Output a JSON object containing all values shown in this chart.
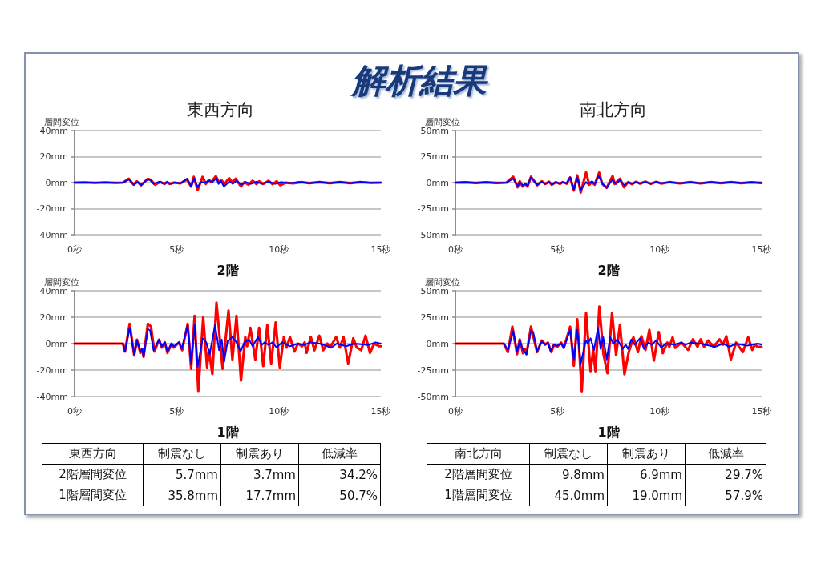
{
  "chart_data": [
    {
      "type": "other",
      "title": "解析結果"
    },
    {
      "type": "line",
      "title": "東西方向",
      "xlabel": "2階",
      "ylabel": "層間変位",
      "xlim": [
        0,
        15
      ],
      "xticks": [
        {
          "value": 0,
          "label": "0秒"
        },
        {
          "value": 5,
          "label": "5秒"
        },
        {
          "value": 10,
          "label": "10秒"
        },
        {
          "value": 15,
          "label": "15秒"
        }
      ],
      "ylim": [
        -40,
        40
      ],
      "yticks": [
        {
          "value": -40,
          "label": "-40mm"
        },
        {
          "value": -20,
          "label": "-20mm"
        },
        {
          "value": 0,
          "label": "0mm"
        },
        {
          "value": 20,
          "label": "20mm"
        },
        {
          "value": 40,
          "label": "40mm"
        }
      ],
      "grid": "y",
      "series": [
        {
          "color": "#ff0000",
          "x": [
            0,
            0.5,
            1,
            1.5,
            2,
            2.37,
            2.66,
            2.89,
            3.05,
            3.26,
            3.59,
            3.74,
            3.94,
            4.2,
            4.4,
            4.53,
            4.66,
            4.86,
            5.18,
            5.51,
            5.71,
            5.84,
            6.03,
            6.27,
            6.43,
            6.58,
            6.69,
            6.92,
            7.08,
            7.21,
            7.34,
            7.57,
            7.74,
            7.89,
            8.15,
            8.32,
            8.52,
            8.72,
            8.91,
            9.04,
            9.24,
            9.5,
            9.7,
            9.9,
            10.07,
            10.35,
            10.7,
            11.1,
            11.5,
            12,
            12.5,
            13,
            13.5,
            14,
            14.5,
            15
          ],
          "values": [
            0,
            0.2,
            -0.2,
            0.2,
            -0.2,
            0,
            3,
            -1.6,
            1,
            -2,
            3,
            2,
            -1.6,
            0.6,
            -1,
            0.4,
            -1,
            0,
            -0.6,
            2.4,
            -3,
            4.4,
            -5.7,
            4.4,
            -1,
            2,
            0.4,
            5,
            0,
            1.6,
            -1,
            3.4,
            0,
            3,
            -3,
            0.4,
            -1.6,
            1.4,
            -1.2,
            1,
            -1,
            1.4,
            -1.2,
            1,
            -2,
            0,
            -0.6,
            0.4,
            -0.4,
            0.4,
            -0.4,
            0.4,
            -0.4,
            0.4,
            -0.2,
            0
          ]
        },
        {
          "color": "#0000ff",
          "x": [
            0,
            0.5,
            1,
            1.5,
            2,
            2.37,
            2.66,
            2.91,
            3.09,
            3.26,
            3.55,
            3.7,
            3.87,
            4.14,
            4.4,
            4.53,
            4.73,
            4.92,
            5.18,
            5.51,
            5.71,
            5.86,
            6.03,
            6.19,
            6.4,
            6.58,
            6.75,
            6.95,
            7.05,
            7.15,
            7.32,
            7.6,
            7.74,
            7.93,
            8.15,
            8.39,
            8.63,
            8.91,
            9.18,
            9.5,
            9.83,
            10.09,
            10.5,
            11,
            11.5,
            12,
            12.5,
            13,
            13.5,
            14,
            14.5,
            15
          ],
          "values": [
            0,
            0.2,
            -0.2,
            0.2,
            -0.2,
            0,
            2.4,
            -1.6,
            0.4,
            -2,
            2.4,
            2,
            -1,
            0.6,
            -1,
            0.4,
            -1,
            0.2,
            -0.6,
            3,
            -3,
            3.4,
            -3.7,
            0.4,
            0,
            1.6,
            0.4,
            3.4,
            -1,
            1.6,
            -3,
            1,
            -1,
            1.4,
            -1.6,
            0.4,
            -1,
            0.6,
            -1,
            0.6,
            -1,
            0.4,
            -0.4,
            0.4,
            -0.4,
            0.4,
            -0.4,
            0.4,
            -0.4,
            0.4,
            -0.2,
            0
          ]
        }
      ]
    },
    {
      "type": "line",
      "title": "南北方向",
      "xlabel": "2階",
      "ylabel": "層間変位",
      "xlim": [
        0,
        15
      ],
      "xticks": [
        {
          "value": 0,
          "label": "0秒"
        },
        {
          "value": 5,
          "label": "5秒"
        },
        {
          "value": 10,
          "label": "10秒"
        },
        {
          "value": 15,
          "label": "15秒"
        }
      ],
      "ylim": [
        -50,
        50
      ],
      "yticks": [
        {
          "value": -50,
          "label": "-50mm"
        },
        {
          "value": -25,
          "label": "-25mm"
        },
        {
          "value": 0,
          "label": "0mm"
        },
        {
          "value": 25,
          "label": "25mm"
        },
        {
          "value": 50,
          "label": "50mm"
        }
      ],
      "grid": "y",
      "series": [
        {
          "color": "#ff0000",
          "x": [
            0,
            0.5,
            1,
            1.5,
            2,
            2.5,
            2.83,
            3.05,
            3.15,
            3.29,
            3.42,
            3.53,
            3.7,
            4.01,
            4.23,
            4.4,
            4.59,
            4.72,
            4.92,
            5.12,
            5.25,
            5.45,
            5.62,
            5.8,
            5.97,
            6.14,
            6.4,
            6.56,
            6.69,
            6.82,
            7.04,
            7.19,
            7.41,
            7.7,
            7.8,
            8.06,
            8.26,
            8.46,
            8.65,
            8.85,
            9.04,
            9.3,
            9.57,
            9.83,
            10.09,
            10.5,
            11,
            11.5,
            12,
            12.5,
            13,
            13.5,
            14,
            14.5,
            15
          ],
          "values": [
            0,
            0.3,
            -0.3,
            0.3,
            -0.3,
            0,
            5.6,
            -4.5,
            1.3,
            -3.8,
            -1,
            -3.8,
            5.6,
            -2.5,
            1.3,
            -1.3,
            0.8,
            -2,
            0.5,
            -1.3,
            0.5,
            -1,
            5,
            -7.6,
            7,
            -9.6,
            9.8,
            -2,
            0.5,
            -2,
            9.6,
            -1.3,
            -5,
            6.3,
            -1.3,
            3.8,
            -4.5,
            0.5,
            -1.5,
            0.8,
            -1,
            1,
            -1.3,
            0.8,
            -1,
            0.5,
            -0.8,
            0.5,
            -0.8,
            0.5,
            -0.5,
            0.5,
            -0.5,
            0.3,
            -0.3
          ]
        },
        {
          "color": "#0000ff",
          "x": [
            0,
            0.5,
            1,
            1.5,
            2,
            2.5,
            2.83,
            3.05,
            3.15,
            3.31,
            3.42,
            3.53,
            3.7,
            4.01,
            4.23,
            4.4,
            4.59,
            4.72,
            4.92,
            5.12,
            5.25,
            5.45,
            5.62,
            5.8,
            5.97,
            6.14,
            6.4,
            6.49,
            6.69,
            6.82,
            7.02,
            7.22,
            7.41,
            7.67,
            7.87,
            8.06,
            8.26,
            8.46,
            8.65,
            8.85,
            9.04,
            9.3,
            9.57,
            9.83,
            10.09,
            10.5,
            11,
            11.5,
            12,
            12.5,
            13,
            13.5,
            14,
            14.5,
            15
          ],
          "values": [
            0,
            0.3,
            -0.3,
            0.3,
            -0.3,
            0,
            3.8,
            -3.3,
            0.5,
            -3,
            -1,
            -3.3,
            5,
            -2,
            0.8,
            -1.3,
            0.5,
            -1.8,
            0.3,
            -1,
            0.3,
            -0.8,
            5,
            -6.5,
            5,
            -6.9,
            0.5,
            -1.3,
            1.3,
            -1.3,
            6.3,
            -1.3,
            -5,
            2.5,
            -1.3,
            2.5,
            -2.5,
            0.3,
            -1,
            0.5,
            -0.8,
            0.5,
            -1,
            0.5,
            -0.5,
            0.3,
            -0.5,
            0.3,
            -0.5,
            0.3,
            -0.3,
            0.3,
            -0.3,
            0.3,
            -0.3
          ]
        }
      ]
    },
    {
      "type": "line",
      "xlabel": "1階",
      "ylabel": "層間変位",
      "xlim": [
        0,
        15
      ],
      "xticks": [
        {
          "value": 0,
          "label": "0秒"
        },
        {
          "value": 5,
          "label": "5秒"
        },
        {
          "value": 10,
          "label": "10秒"
        },
        {
          "value": 15,
          "label": "15秒"
        }
      ],
      "ylim": [
        -40,
        40
      ],
      "yticks": [
        {
          "value": -40,
          "label": "-40mm"
        },
        {
          "value": -20,
          "label": "-20mm"
        },
        {
          "value": 0,
          "label": "0mm"
        },
        {
          "value": 20,
          "label": "20mm"
        },
        {
          "value": 40,
          "label": "40mm"
        }
      ],
      "grid": "y",
      "series": [
        {
          "color": "#ff0000",
          "x": [
            0,
            1,
            2,
            2.37,
            2.47,
            2.7,
            2.92,
            3.06,
            3.22,
            3.31,
            3.38,
            3.59,
            3.74,
            3.91,
            4.14,
            4.27,
            4.42,
            4.55,
            4.75,
            4.86,
            5.12,
            5.27,
            5.54,
            5.71,
            5.88,
            6.06,
            6.3,
            6.49,
            6.58,
            6.75,
            6.95,
            7.25,
            7.54,
            7.73,
            7.93,
            8.15,
            8.36,
            8.45,
            8.61,
            8.85,
            9.04,
            9.24,
            9.44,
            9.63,
            9.85,
            10.05,
            10.25,
            10.38,
            10.55,
            10.77,
            10.94,
            11.14,
            11.27,
            11.36,
            11.57,
            11.75,
            11.99,
            12.18,
            12.38,
            12.51,
            12.81,
            12.99,
            13.17,
            13.4,
            13.65,
            13.82,
            14.04,
            14.25,
            14.47,
            14.67,
            14.93,
            15
          ],
          "values": [
            0,
            0,
            0,
            0,
            -6,
            15,
            -9,
            3,
            -7,
            -4,
            -10,
            15,
            13,
            -6,
            3,
            -3,
            1,
            -7,
            0,
            -3,
            1,
            -5,
            15,
            -19,
            21,
            -35.8,
            20,
            -18,
            -5,
            -23,
            31,
            -19,
            25,
            -12,
            21,
            -28,
            5,
            -2,
            12,
            -12,
            12,
            -17,
            14,
            -15,
            16,
            -18,
            5,
            -3,
            5,
            -6,
            0,
            -2,
            1,
            -7,
            5,
            -5,
            6,
            -5,
            0,
            -3,
            5,
            -3,
            5,
            -15,
            4,
            -3,
            -5,
            6,
            -7,
            0,
            -2,
            -2
          ]
        },
        {
          "color": "#0000ff",
          "x": [
            0,
            1,
            2,
            2.37,
            2.47,
            2.7,
            2.92,
            3.06,
            3.22,
            3.31,
            3.38,
            3.59,
            3.7,
            3.87,
            4.14,
            4.27,
            4.42,
            4.55,
            4.75,
            4.86,
            5.12,
            5.25,
            5.54,
            5.71,
            5.88,
            6.03,
            6.27,
            6.45,
            6.62,
            6.88,
            7.08,
            7.21,
            7.32,
            7.5,
            7.73,
            7.93,
            8.13,
            8.32,
            8.55,
            8.72,
            8.98,
            9.17,
            9.31,
            9.5,
            9.7,
            9.89,
            10.16,
            10.55,
            10.94,
            11.27,
            11.53,
            12,
            12.58,
            12.84,
            13.3,
            13.69,
            14.41,
            14.74,
            15
          ],
          "values": [
            0,
            0,
            0,
            0,
            -6,
            12,
            -8,
            2,
            -6,
            -4,
            -10,
            11,
            10,
            -5,
            3,
            -2,
            1,
            -6,
            0,
            -2,
            1,
            -4,
            14,
            -15,
            14,
            -17.7,
            4,
            1,
            -8,
            14,
            -5,
            3,
            -14,
            2,
            5,
            1,
            -6,
            1,
            3,
            -2,
            5,
            -1,
            1,
            -1,
            1,
            -3,
            1,
            -2,
            0,
            -1,
            1,
            0,
            -3,
            0,
            -2,
            0,
            -1,
            1,
            0
          ]
        }
      ]
    },
    {
      "type": "line",
      "xlabel": "1階",
      "ylabel": "層間変位",
      "xlim": [
        0,
        15
      ],
      "xticks": [
        {
          "value": 0,
          "label": "0秒"
        },
        {
          "value": 5,
          "label": "5秒"
        },
        {
          "value": 10,
          "label": "10秒"
        },
        {
          "value": 15,
          "label": "15秒"
        }
      ],
      "ylim": [
        -50,
        50
      ],
      "yticks": [
        {
          "value": -50,
          "label": "-50mm"
        },
        {
          "value": -25,
          "label": "-25mm"
        },
        {
          "value": 0,
          "label": "0mm"
        },
        {
          "value": 25,
          "label": "25mm"
        },
        {
          "value": 50,
          "label": "50mm"
        }
      ],
      "grid": "y",
      "series": [
        {
          "color": "#ff0000",
          "x": [
            0,
            1,
            2,
            2.37,
            2.57,
            2.79,
            3.02,
            3.15,
            3.31,
            3.39,
            3.48,
            3.7,
            4,
            4.23,
            4.4,
            4.53,
            4.7,
            4.83,
            4.99,
            5.18,
            5.31,
            5.62,
            5.8,
            5.97,
            6.19,
            6.4,
            6.62,
            6.75,
            6.86,
            7.05,
            7.25,
            7.45,
            7.67,
            7.87,
            8.06,
            8.28,
            8.49,
            8.72,
            8.94,
            9.11,
            9.31,
            9.5,
            9.72,
            9.96,
            10.16,
            10.38,
            10.48,
            10.64,
            10.77,
            11.07,
            11.4,
            11.63,
            11.86,
            12.01,
            12.18,
            12.38,
            12.64,
            12.94,
            13.1,
            13.27,
            13.49,
            13.75,
            14.08,
            14.34,
            14.54,
            14.67,
            14.8,
            15
          ],
          "values": [
            0,
            0,
            0,
            0,
            -8,
            16,
            -10,
            4,
            -9,
            -5,
            -10,
            16,
            -8,
            3,
            -1,
            1,
            -8,
            -1,
            -3,
            1,
            -4,
            16,
            -21,
            23,
            -45,
            29,
            -26,
            -6,
            -26,
            35,
            -10,
            -28,
            29,
            -11,
            18,
            -29,
            -8,
            6,
            -8,
            7,
            -6,
            13,
            -16,
            11,
            -9,
            1,
            -3,
            6,
            -4,
            1,
            -6,
            4,
            -3,
            4,
            -3,
            3,
            -3,
            4,
            -1,
            7,
            -15,
            1,
            -8,
            6,
            -6,
            -1,
            -3,
            -3
          ]
        },
        {
          "color": "#0000ff",
          "x": [
            0,
            1,
            2,
            2.37,
            2.57,
            2.83,
            3.02,
            3.15,
            3.31,
            3.48,
            3.7,
            3.81,
            4,
            4.23,
            4.4,
            4.53,
            4.66,
            4.83,
            4.99,
            5.18,
            5.31,
            5.62,
            5.8,
            5.97,
            6.14,
            6.39,
            6.49,
            6.62,
            6.79,
            6.98,
            7.11,
            7.24,
            7.41,
            7.58,
            7.73,
            7.93,
            8.19,
            8.34,
            8.45,
            8.62,
            8.78,
            9.04,
            9.24,
            9.44,
            9.63,
            9.83,
            10.09,
            10.29,
            10.74,
            11.07,
            11.27,
            11.53,
            12,
            12.71,
            13.1,
            13.43,
            13.75,
            14.28,
            14.8,
            15
          ],
          "values": [
            0,
            0,
            0,
            0,
            -6,
            12,
            -8,
            3,
            -6,
            -10,
            12,
            11,
            -7,
            2,
            -1,
            1,
            -7,
            -1,
            -2,
            0,
            -4,
            13,
            -15,
            13,
            -19,
            3,
            0,
            5,
            -6,
            15,
            -5,
            6,
            -15,
            6,
            0,
            4,
            -5,
            -1,
            -5,
            4,
            -1,
            5,
            -5,
            1,
            -1,
            3,
            -4,
            0,
            -1,
            1,
            -1,
            1,
            0,
            -3,
            0,
            -3,
            0,
            -2,
            0,
            -1
          ]
        }
      ]
    },
    {
      "type": "other",
      "title": "東西方向",
      "categories": [
        "2階層間変位",
        "1階層間変位"
      ],
      "series": [
        {
          "name": "制震なし",
          "values": [
            5.7,
            35.8
          ],
          "value_labels": [
            "5.7mm",
            "35.8mm"
          ]
        },
        {
          "name": "制震あり",
          "values": [
            3.7,
            17.7
          ],
          "value_labels": [
            "3.7mm",
            "17.7mm"
          ]
        },
        {
          "name": "低減率",
          "values": [
            34.2,
            50.7
          ],
          "value_labels": [
            "34.2%",
            "50.7%"
          ]
        }
      ]
    },
    {
      "type": "other",
      "title": "南北方向",
      "categories": [
        "2階層間変位",
        "1階層間変位"
      ],
      "series": [
        {
          "name": "制震なし",
          "values": [
            9.8,
            45.0
          ],
          "value_labels": [
            "9.8mm",
            "45.0mm"
          ]
        },
        {
          "name": "制震あり",
          "values": [
            6.9,
            19.0
          ],
          "value_labels": [
            "6.9mm",
            "19.0mm"
          ]
        },
        {
          "name": "低減率",
          "values": [
            29.7,
            57.9
          ],
          "value_labels": [
            "29.7%",
            "57.9%"
          ]
        }
      ]
    }
  ]
}
